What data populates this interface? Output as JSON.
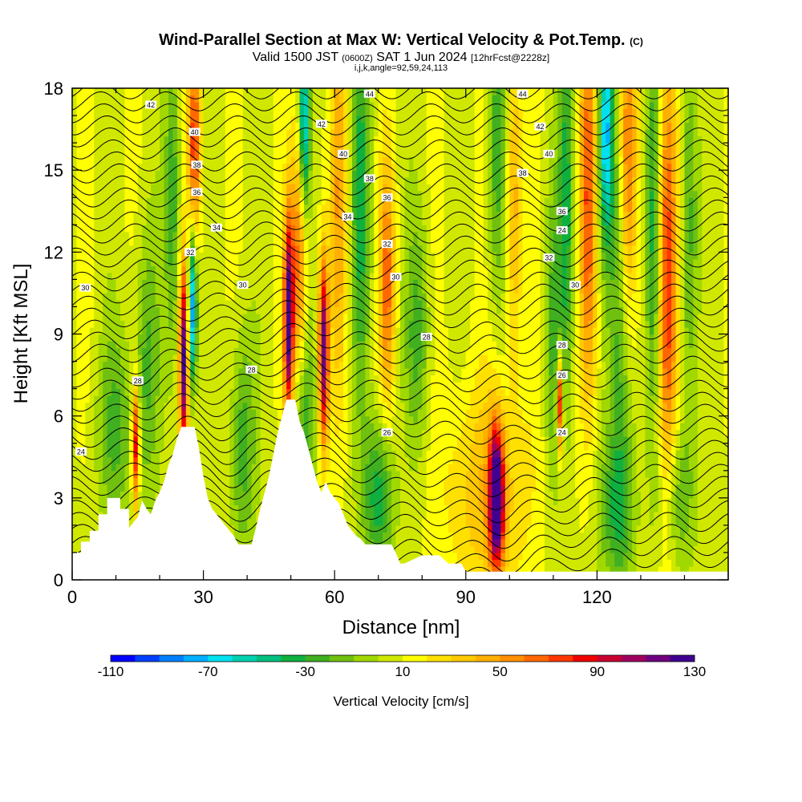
{
  "header": {
    "title": "Wind-Parallel Section at Max W: Vertical Velocity & Pot.Temp.",
    "copyright": "(C)",
    "valid_prefix": "Valid 1500 JST",
    "valid_utc": "(0600Z)",
    "valid_date": "SAT 1 Jun 2024",
    "forecast": "[12hrFcst@2228z]",
    "params": "i,j,k,angle=92,59,24,113"
  },
  "chart_data": {
    "type": "heatmap",
    "xlabel": "Distance [nm]",
    "ylabel": "Height [Kft MSL]",
    "xlim": [
      0,
      150
    ],
    "ylim": [
      0,
      18
    ],
    "xticks": [
      0,
      30,
      60,
      90,
      120
    ],
    "yticks": [
      0,
      3,
      6,
      9,
      12,
      15,
      18
    ],
    "grid": false,
    "colorbar": {
      "label": "Vertical Velocity [cm/s]",
      "min": -110,
      "max": 130,
      "step": 10,
      "ticks": [
        -110,
        -70,
        -30,
        10,
        50,
        90,
        130
      ],
      "colors": [
        "#0000ff",
        "#0040ff",
        "#0080ff",
        "#00b0ff",
        "#00e0f0",
        "#00d0b0",
        "#00c080",
        "#10b040",
        "#40b020",
        "#70c010",
        "#a0d800",
        "#d0e800",
        "#ffff00",
        "#ffe000",
        "#ffc800",
        "#ffb000",
        "#ff9000",
        "#ff6800",
        "#ff3800",
        "#f00000",
        "#c80030",
        "#a00060",
        "#700080",
        "#400090"
      ]
    },
    "background_w": 8,
    "terrain": [
      [
        0,
        1.0
      ],
      [
        2,
        1.0
      ],
      [
        2,
        1.4
      ],
      [
        4,
        1.4
      ],
      [
        4,
        1.8
      ],
      [
        6,
        1.8
      ],
      [
        6,
        2.4
      ],
      [
        8,
        2.4
      ],
      [
        8,
        3.0
      ],
      [
        11,
        3.0
      ],
      [
        11,
        2.6
      ],
      [
        13,
        2.6
      ],
      [
        13,
        1.9
      ],
      [
        15,
        2.3
      ],
      [
        16,
        2.9
      ],
      [
        17,
        2.6
      ],
      [
        18,
        2.4
      ],
      [
        19,
        2.9
      ],
      [
        20,
        3.2
      ],
      [
        21,
        3.6
      ],
      [
        22,
        4.2
      ],
      [
        23,
        4.6
      ],
      [
        24,
        5.2
      ],
      [
        25,
        5.6
      ],
      [
        28,
        5.6
      ],
      [
        29,
        4.8
      ],
      [
        30,
        3.8
      ],
      [
        31,
        3.0
      ],
      [
        32,
        2.6
      ],
      [
        33,
        2.4
      ],
      [
        34,
        2.2
      ],
      [
        35,
        2.0
      ],
      [
        36,
        1.8
      ],
      [
        37,
        1.6
      ],
      [
        38,
        1.3
      ],
      [
        41,
        1.3
      ],
      [
        42,
        1.9
      ],
      [
        43,
        2.6
      ],
      [
        44,
        3.2
      ],
      [
        45,
        3.8
      ],
      [
        46,
        4.6
      ],
      [
        47,
        5.4
      ],
      [
        48,
        6.0
      ],
      [
        49,
        6.6
      ],
      [
        51,
        6.6
      ],
      [
        52,
        5.8
      ],
      [
        53,
        5.4
      ],
      [
        54,
        4.8
      ],
      [
        55,
        4.2
      ],
      [
        56,
        3.6
      ],
      [
        57,
        3.2
      ],
      [
        58,
        3.6
      ],
      [
        59,
        3.2
      ],
      [
        60,
        3.0
      ],
      [
        61,
        2.8
      ],
      [
        62,
        2.4
      ],
      [
        63,
        2.0
      ],
      [
        64,
        1.8
      ],
      [
        65,
        1.6
      ],
      [
        66,
        1.5
      ],
      [
        67,
        1.3
      ],
      [
        73,
        1.3
      ],
      [
        74,
        1.0
      ],
      [
        75,
        0.6
      ],
      [
        76,
        0.6
      ],
      [
        80,
        0.9
      ],
      [
        84,
        0.9
      ],
      [
        86,
        0.6
      ],
      [
        89,
        0.6
      ],
      [
        90,
        0.3
      ],
      [
        150,
        0.3
      ],
      [
        150,
        0
      ],
      [
        0,
        0
      ]
    ],
    "w_features": [
      {
        "x": 14.5,
        "z": 5.0,
        "amp": 90,
        "sx": 0.6,
        "sz": 1.6
      },
      {
        "x": 10,
        "z": 5.5,
        "amp": -30,
        "sx": 3.0,
        "sz": 2.5
      },
      {
        "x": 17,
        "z": 8.0,
        "amp": -30,
        "sx": 2.0,
        "sz": 3.5
      },
      {
        "x": 25.5,
        "z": 8.0,
        "amp": 110,
        "sx": 0.7,
        "sz": 2.5
      },
      {
        "x": 27.5,
        "z": 10.0,
        "amp": -90,
        "sx": 0.7,
        "sz": 2.0
      },
      {
        "x": 28,
        "z": 16.0,
        "amp": 70,
        "sx": 1.0,
        "sz": 2.5
      },
      {
        "x": 23,
        "z": 14.0,
        "amp": -35,
        "sx": 1.2,
        "sz": 4.0
      },
      {
        "x": 39,
        "z": 5.0,
        "amp": -35,
        "sx": 2.0,
        "sz": 3.0
      },
      {
        "x": 49.5,
        "z": 9.6,
        "amp": 120,
        "sx": 0.8,
        "sz": 2.6
      },
      {
        "x": 52,
        "z": 12.0,
        "amp": 60,
        "sx": 1.2,
        "sz": 3.5
      },
      {
        "x": 53,
        "z": 6.0,
        "amp": -35,
        "sx": 1.8,
        "sz": 2.5
      },
      {
        "x": 57.5,
        "z": 8.4,
        "amp": 110,
        "sx": 0.8,
        "sz": 2.4
      },
      {
        "x": 53,
        "z": 16.5,
        "amp": -80,
        "sx": 0.9,
        "sz": 2.5
      },
      {
        "x": 61,
        "z": 14.0,
        "amp": 40,
        "sx": 1.2,
        "sz": 5.0
      },
      {
        "x": 66,
        "z": 14.0,
        "amp": -40,
        "sx": 1.5,
        "sz": 5.0
      },
      {
        "x": 70,
        "z": 3.0,
        "amp": -45,
        "sx": 2.5,
        "sz": 2.0
      },
      {
        "x": 72,
        "z": 11.0,
        "amp": 55,
        "sx": 1.2,
        "sz": 3.0
      },
      {
        "x": 79,
        "z": 9.0,
        "amp": -30,
        "sx": 2.0,
        "sz": 3.0
      },
      {
        "x": 97,
        "z": 3.0,
        "amp": 130,
        "sx": 1.2,
        "sz": 1.8
      },
      {
        "x": 95,
        "z": 3.2,
        "amp": 30,
        "sx": 7.0,
        "sz": 3.0
      },
      {
        "x": 97,
        "z": 16.0,
        "amp": -35,
        "sx": 1.5,
        "sz": 4.0
      },
      {
        "x": 101,
        "z": 14.0,
        "amp": 40,
        "sx": 1.2,
        "sz": 4.0
      },
      {
        "x": 111.5,
        "z": 6.5,
        "amp": 90,
        "sx": 0.5,
        "sz": 1.3
      },
      {
        "x": 110,
        "z": 9.0,
        "amp": -30,
        "sx": 1.5,
        "sz": 4.0
      },
      {
        "x": 113,
        "z": 14.0,
        "amp": -40,
        "sx": 1.2,
        "sz": 5.0
      },
      {
        "x": 118,
        "z": 14.0,
        "amp": 60,
        "sx": 1.4,
        "sz": 5.0
      },
      {
        "x": 122,
        "z": 16.5,
        "amp": -75,
        "sx": 1.2,
        "sz": 3.0
      },
      {
        "x": 126,
        "z": 10.0,
        "amp": -40,
        "sx": 2.0,
        "sz": 6.0
      },
      {
        "x": 127,
        "z": 15.0,
        "amp": 70,
        "sx": 1.4,
        "sz": 4.5
      },
      {
        "x": 136,
        "z": 11.0,
        "amp": 75,
        "sx": 1.6,
        "sz": 6.0
      },
      {
        "x": 133,
        "z": 13.0,
        "amp": -45,
        "sx": 1.3,
        "sz": 5.0
      },
      {
        "x": 141,
        "z": 13.0,
        "amp": -35,
        "sx": 1.4,
        "sz": 5.0
      },
      {
        "x": 138,
        "z": 3.0,
        "amp": -30,
        "sx": 3.0,
        "sz": 2.0
      },
      {
        "x": 124,
        "z": 2.5,
        "amp": -30,
        "sx": 3.0,
        "sz": 2.0
      }
    ],
    "theta_levels": [
      24,
      26,
      28,
      30,
      32,
      34,
      36,
      38,
      40,
      42,
      44
    ],
    "contour_labels": [
      {
        "text": "42",
        "x": 18,
        "z": 17.4
      },
      {
        "text": "40",
        "x": 28,
        "z": 16.4
      },
      {
        "text": "38",
        "x": 28.5,
        "z": 15.2
      },
      {
        "text": "36",
        "x": 28.5,
        "z": 14.2
      },
      {
        "text": "34",
        "x": 33,
        "z": 12.9
      },
      {
        "text": "32",
        "x": 27,
        "z": 12.0
      },
      {
        "text": "30",
        "x": 3,
        "z": 10.7
      },
      {
        "text": "30",
        "x": 39,
        "z": 10.8
      },
      {
        "text": "28",
        "x": 15,
        "z": 7.3
      },
      {
        "text": "28",
        "x": 41,
        "z": 7.7
      },
      {
        "text": "24",
        "x": 2,
        "z": 4.7
      },
      {
        "text": "44",
        "x": 68,
        "z": 17.8
      },
      {
        "text": "42",
        "x": 57,
        "z": 16.7
      },
      {
        "text": "40",
        "x": 62,
        "z": 15.6
      },
      {
        "text": "38",
        "x": 68,
        "z": 14.7
      },
      {
        "text": "36",
        "x": 72,
        "z": 14.0
      },
      {
        "text": "34",
        "x": 63,
        "z": 13.3
      },
      {
        "text": "32",
        "x": 72,
        "z": 12.3
      },
      {
        "text": "30",
        "x": 74,
        "z": 11.1
      },
      {
        "text": "28",
        "x": 81,
        "z": 8.9
      },
      {
        "text": "26",
        "x": 72,
        "z": 5.4
      },
      {
        "text": "44",
        "x": 103,
        "z": 17.8
      },
      {
        "text": "42",
        "x": 107,
        "z": 16.6
      },
      {
        "text": "40",
        "x": 109,
        "z": 15.6
      },
      {
        "text": "38",
        "x": 103,
        "z": 14.9
      },
      {
        "text": "36",
        "x": 112,
        "z": 13.5
      },
      {
        "text": "24",
        "x": 112,
        "z": 12.8
      },
      {
        "text": "32",
        "x": 109,
        "z": 11.8
      },
      {
        "text": "30",
        "x": 115,
        "z": 10.8
      },
      {
        "text": "28",
        "x": 112,
        "z": 8.6
      },
      {
        "text": "26",
        "x": 112,
        "z": 7.5
      },
      {
        "text": "24",
        "x": 112,
        "z": 5.4
      }
    ]
  }
}
